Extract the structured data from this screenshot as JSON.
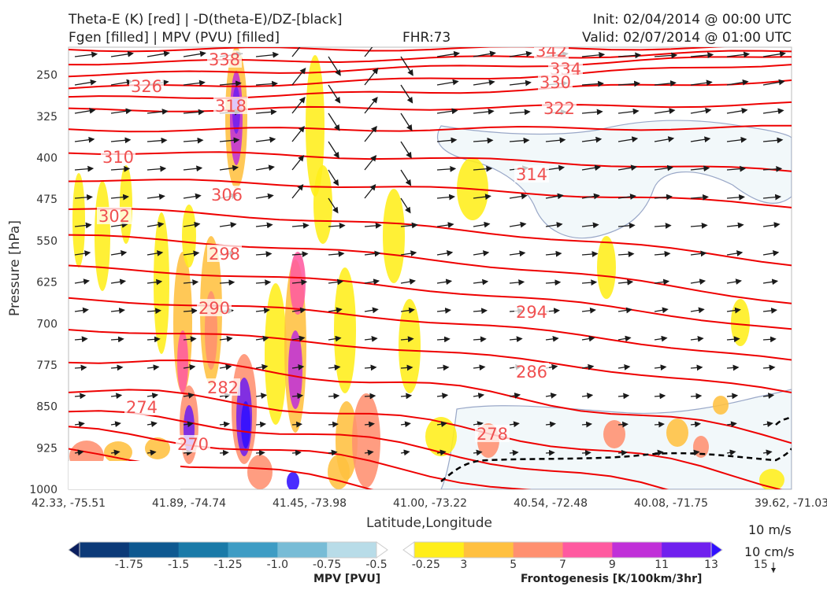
{
  "header": {
    "title_left_1": "Theta-E (K) [red] | -D(theta-E)/DZ-[black]",
    "title_left_2": "Fgen [filled] | MPV (PVU) [filled]",
    "forecast_hour": "FHR:73",
    "init": "Init: 02/04/2014 @ 00:00 UTC",
    "valid": "Valid: 02/07/2014 @ 01:00 UTC"
  },
  "chart_data": {
    "type": "cross-section",
    "xlabel": "Latitude,Longitude",
    "ylabel": "Pressure [hPa]",
    "x_ticks": [
      "42.33, -75.51",
      "41.89, -74.74",
      "41.45, -73.98",
      "41.00, -73.22",
      "40.54, -72.48",
      "40.08, -71.75",
      "39.62, -71.03"
    ],
    "y_ticks": [
      250,
      325,
      400,
      475,
      550,
      625,
      700,
      775,
      850,
      925,
      1000
    ],
    "ylim": [
      1000,
      200
    ],
    "theta_e_contours": [
      {
        "value": 342,
        "color": "#ee0000"
      },
      {
        "value": 338,
        "color": "#ee0000"
      },
      {
        "value": 334,
        "color": "#ee0000"
      },
      {
        "value": 330,
        "color": "#ee0000"
      },
      {
        "value": 326,
        "color": "#ee0000"
      },
      {
        "value": 322,
        "color": "#ee0000"
      },
      {
        "value": 318,
        "color": "#ee0000"
      },
      {
        "value": 314,
        "color": "#ee0000"
      },
      {
        "value": 310,
        "color": "#ee0000"
      },
      {
        "value": 306,
        "color": "#ee0000"
      },
      {
        "value": 302,
        "color": "#ee0000"
      },
      {
        "value": 298,
        "color": "#ee0000"
      },
      {
        "value": 294,
        "color": "#ee0000"
      },
      {
        "value": 290,
        "color": "#ee0000"
      },
      {
        "value": 286,
        "color": "#ee0000"
      },
      {
        "value": 282,
        "color": "#ee0000"
      },
      {
        "value": 278,
        "color": "#ee0000"
      },
      {
        "value": 274,
        "color": "#ee0000"
      },
      {
        "value": 270,
        "color": "#ee0000"
      }
    ],
    "mpv_colorbar": {
      "label": "MPV [PVU]",
      "ticks": [
        "-1.75",
        "-1.5",
        "-1.25",
        "-1.0",
        "-0.75",
        "-0.5",
        "-0.25"
      ],
      "colors": [
        "#0a1e5e",
        "#0c3a78",
        "#0e5890",
        "#1a7aa8",
        "#3e9cc4",
        "#78bcd6",
        "#b8dce8",
        "#ffffff"
      ]
    },
    "fgen_colorbar": {
      "label": "Frontogenesis [K/100km/3hr]",
      "ticks": [
        "3",
        "5",
        "7",
        "9",
        "11",
        "13",
        "15"
      ],
      "colors": [
        "#ffffff",
        "#ffee1a",
        "#ffc040",
        "#ff9070",
        "#ff5aa0",
        "#c030d8",
        "#7020ee",
        "#3010ff"
      ]
    },
    "vector_reference": {
      "horizontal": "10 m/s",
      "vertical": "10 cm/s"
    }
  },
  "colors": {
    "theta_e": "#ee0000",
    "vectors": "#1a1a1a",
    "mpv_outline": "#9aa8c8",
    "dashed_line": "#000000"
  }
}
